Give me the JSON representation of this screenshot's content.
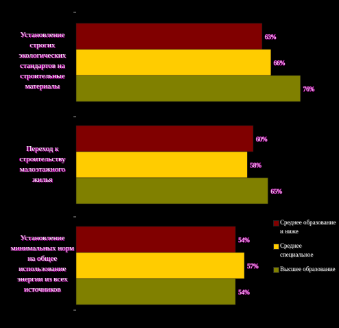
{
  "chart_data": {
    "type": "bar",
    "orientation": "horizontal",
    "categories": [
      "Установление строгих экологических стандартов на строительные материалы",
      "Переход к строительству малоэтажного жилья",
      "Установление минимальных норм на общее использование энергии из всех источников"
    ],
    "series": [
      {
        "name": "Среднее образование и ниже",
        "color": "#800000",
        "values": [
          63,
          60,
          54
        ],
        "labels": [
          "63%",
          "60%",
          "54%"
        ]
      },
      {
        "name": "Среднее специальное",
        "color": "#ffcc00",
        "values": [
          66,
          58,
          57
        ],
        "labels": [
          "66%",
          "58%",
          "57%"
        ]
      },
      {
        "name": "Высшее образование",
        "color": "#808000",
        "values": [
          76,
          65,
          54
        ],
        "labels": [
          "76%",
          "65%",
          "54%"
        ]
      }
    ],
    "xlim": [
      0,
      100
    ],
    "grid": false,
    "legend_position": "right"
  },
  "colors": {
    "background": "#000000",
    "category_text_shadow": "#b000a0",
    "value_label_shadow": "#b000a0"
  }
}
